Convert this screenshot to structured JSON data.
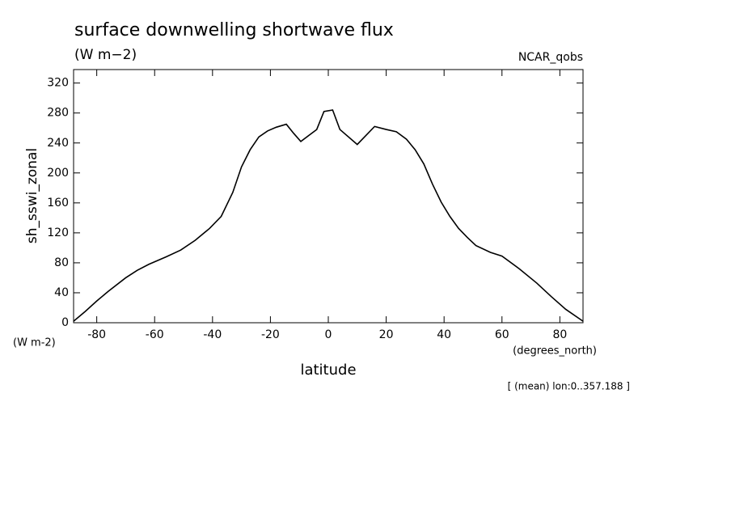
{
  "chart_data": {
    "type": "line",
    "title": "surface downwelling shortwave flux",
    "subtitle": "(W m−2)",
    "source": "NCAR_qobs",
    "ylabel": "sh_sswi_zonal",
    "yunits": "(W m-2)",
    "xunits": "(degrees_north)",
    "xlabel": "latitude",
    "annotation": "[ (mean) lon:0..357.188 ]",
    "x": [
      -88,
      -84,
      -80,
      -76,
      -70,
      -66,
      -62,
      -56,
      -51,
      -46,
      -41,
      -37,
      -33,
      -30,
      -27,
      -24,
      -21,
      -18,
      -14.5,
      -12,
      -9.5,
      -4,
      -1.5,
      1.5,
      4,
      10,
      16,
      20,
      23.5,
      27,
      30,
      33,
      36,
      39,
      42,
      45,
      48,
      51,
      56,
      60,
      66,
      72,
      77,
      82,
      88
    ],
    "series": [
      {
        "name": "sh_sswi_zonal",
        "color": "#000000",
        "values": [
          2,
          15,
          29,
          42,
          60,
          70,
          78,
          88,
          97,
          110,
          126,
          142,
          174,
          208,
          231,
          248,
          256,
          261,
          265,
          253,
          242,
          258,
          282,
          284,
          258,
          238,
          262,
          258,
          255,
          245,
          231,
          212,
          185,
          161,
          142,
          126,
          114,
          103,
          94,
          89,
          72,
          53,
          35,
          18,
          2
        ]
      }
    ],
    "xlim": [
      -88,
      88
    ],
    "xticks": [
      -80,
      -60,
      -40,
      -20,
      0,
      20,
      40,
      60,
      80
    ],
    "ylim": [
      0,
      338
    ],
    "yticks": [
      0,
      40,
      80,
      120,
      160,
      200,
      240,
      280,
      320
    ]
  }
}
